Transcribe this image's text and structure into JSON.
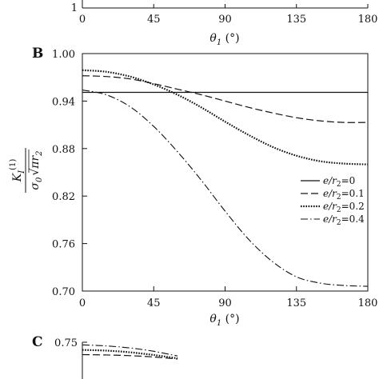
{
  "chart_data": [
    {
      "panel": "",
      "type": "line",
      "partial": "bottom-visible",
      "xlabel_var": "θ",
      "xlabel_sub": "1",
      "xlabel_unit": " (°)",
      "x_ticks": [
        "0",
        "45",
        "90",
        "135",
        "180"
      ],
      "y_ticks_visible": [
        "1"
      ],
      "xlim": [
        0,
        180
      ]
    },
    {
      "panel": "B",
      "type": "line",
      "xlim": [
        0,
        180
      ],
      "ylim": [
        0.7,
        1.0
      ],
      "x_ticks": [
        "0",
        "45",
        "90",
        "135",
        "180"
      ],
      "y_ticks": [
        "0.70",
        "0.76",
        "0.82",
        "0.88",
        "0.94",
        "1.00"
      ],
      "xlabel_var": "θ",
      "xlabel_sub": "1",
      "xlabel_unit": " (°)",
      "ylabel_num": "K",
      "ylabel_num_sub": "I",
      "ylabel_num_sup": "(1)",
      "ylabel_den": "σ",
      "ylabel_den_sub": "0",
      "ylabel_den_root": "πr",
      "ylabel_den_root_sub": "2",
      "legend_position": "right",
      "x": [
        0,
        15,
        30,
        45,
        60,
        75,
        90,
        105,
        120,
        135,
        150,
        165,
        180
      ],
      "series": [
        {
          "name_pre": "e/r",
          "name_sub": "2",
          "name_post": "=0",
          "dash": "solid",
          "values": [
            0.951,
            0.951,
            0.951,
            0.951,
            0.951,
            0.951,
            0.951,
            0.951,
            0.951,
            0.951,
            0.951,
            0.951,
            0.951
          ]
        },
        {
          "name_pre": "e/r",
          "name_sub": "2",
          "name_post": "=0.1",
          "dash": "dashed",
          "values": [
            0.972,
            0.971,
            0.968,
            0.962,
            0.955,
            0.948,
            0.94,
            0.932,
            0.925,
            0.919,
            0.915,
            0.913,
            0.913
          ]
        },
        {
          "name_pre": "e/r",
          "name_sub": "2",
          "name_post": "=0.2",
          "dash": "dotted",
          "values": [
            0.979,
            0.977,
            0.971,
            0.961,
            0.948,
            0.932,
            0.914,
            0.897,
            0.882,
            0.871,
            0.864,
            0.861,
            0.86
          ]
        },
        {
          "name_pre": "e/r",
          "name_sub": "2",
          "name_post": "=0.4",
          "dash": "dashdot",
          "values": [
            0.954,
            0.948,
            0.933,
            0.908,
            0.876,
            0.84,
            0.801,
            0.765,
            0.737,
            0.718,
            0.71,
            0.707,
            0.706
          ]
        }
      ]
    },
    {
      "panel": "C",
      "type": "line",
      "partial": "top-visible",
      "xlim": [
        0,
        180
      ],
      "y_ticks_visible": [
        "0.75"
      ],
      "x": [
        0,
        15,
        30,
        45,
        60
      ],
      "series": [
        {
          "dash": "dashdot",
          "values": [
            0.742,
            0.739,
            0.733,
            0.723,
            0.709
          ]
        },
        {
          "dash": "dotted",
          "values": [
            0.727,
            0.725,
            0.72,
            0.712,
            0.702
          ]
        },
        {
          "dash": "dashed",
          "values": [
            0.713,
            0.712,
            0.71,
            0.706,
            0.7
          ]
        }
      ]
    }
  ]
}
